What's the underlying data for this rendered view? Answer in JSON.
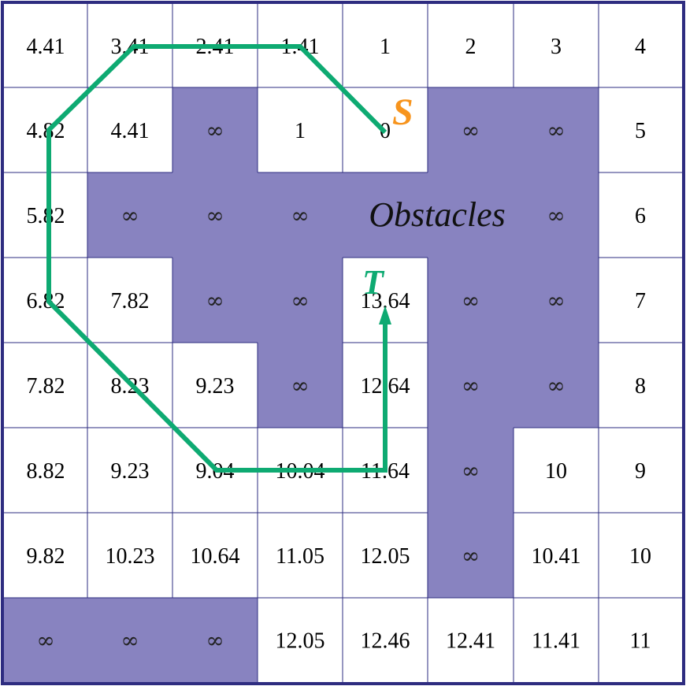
{
  "grid": {
    "rows": [
      [
        {
          "v": "4.41",
          "o": false
        },
        {
          "v": "3.41",
          "o": false
        },
        {
          "v": "2.41",
          "o": false
        },
        {
          "v": "1.41",
          "o": false
        },
        {
          "v": "1",
          "o": false
        },
        {
          "v": "2",
          "o": false
        },
        {
          "v": "3",
          "o": false
        },
        {
          "v": "4",
          "o": false
        }
      ],
      [
        {
          "v": "4.82",
          "o": false
        },
        {
          "v": "4.41",
          "o": false
        },
        {
          "v": "∞",
          "o": true
        },
        {
          "v": "1",
          "o": false
        },
        {
          "v": "0",
          "o": false
        },
        {
          "v": "∞",
          "o": true
        },
        {
          "v": "∞",
          "o": true
        },
        {
          "v": "5",
          "o": false
        }
      ],
      [
        {
          "v": "5.82",
          "o": false
        },
        {
          "v": "∞",
          "o": true
        },
        {
          "v": "∞",
          "o": true
        },
        {
          "v": "∞",
          "o": true
        },
        {
          "v": "",
          "o": true
        },
        {
          "v": "",
          "o": true
        },
        {
          "v": "∞",
          "o": true
        },
        {
          "v": "6",
          "o": false
        }
      ],
      [
        {
          "v": "6.82",
          "o": false
        },
        {
          "v": "7.82",
          "o": false
        },
        {
          "v": "∞",
          "o": true
        },
        {
          "v": "∞",
          "o": true
        },
        {
          "v": "13.64",
          "o": false
        },
        {
          "v": "∞",
          "o": true
        },
        {
          "v": "∞",
          "o": true
        },
        {
          "v": "7",
          "o": false
        }
      ],
      [
        {
          "v": "7.82",
          "o": false
        },
        {
          "v": "8.23",
          "o": false
        },
        {
          "v": "9.23",
          "o": false
        },
        {
          "v": "∞",
          "o": true
        },
        {
          "v": "12.64",
          "o": false
        },
        {
          "v": "∞",
          "o": true
        },
        {
          "v": "∞",
          "o": true
        },
        {
          "v": "8",
          "o": false
        }
      ],
      [
        {
          "v": "8.82",
          "o": false
        },
        {
          "v": "9.23",
          "o": false
        },
        {
          "v": "9.04",
          "o": false
        },
        {
          "v": "10.04",
          "o": false
        },
        {
          "v": "11.64",
          "o": false
        },
        {
          "v": "∞",
          "o": true
        },
        {
          "v": "10",
          "o": false
        },
        {
          "v": "9",
          "o": false
        }
      ],
      [
        {
          "v": "9.82",
          "o": false
        },
        {
          "v": "10.23",
          "o": false
        },
        {
          "v": "10.64",
          "o": false
        },
        {
          "v": "11.05",
          "o": false
        },
        {
          "v": "12.05",
          "o": false
        },
        {
          "v": "∞",
          "o": true
        },
        {
          "v": "10.41",
          "o": false
        },
        {
          "v": "10",
          "o": false
        }
      ],
      [
        {
          "v": "∞",
          "o": true
        },
        {
          "v": "∞",
          "o": true
        },
        {
          "v": "∞",
          "o": true
        },
        {
          "v": "12.05",
          "o": false
        },
        {
          "v": "12.46",
          "o": false
        },
        {
          "v": "12.41",
          "o": false
        },
        {
          "v": "11.41",
          "o": false
        },
        {
          "v": "11",
          "o": false
        }
      ]
    ]
  },
  "labels": {
    "obstacles": "Obstacles",
    "start": "S",
    "target": "T"
  },
  "colors": {
    "obstacle_fill": "#8883C0",
    "grid_line": "#2E2C80",
    "border": "#2E2C80",
    "path": "#0EAA72",
    "start": "#F7941D",
    "target": "#0EAA72"
  }
}
